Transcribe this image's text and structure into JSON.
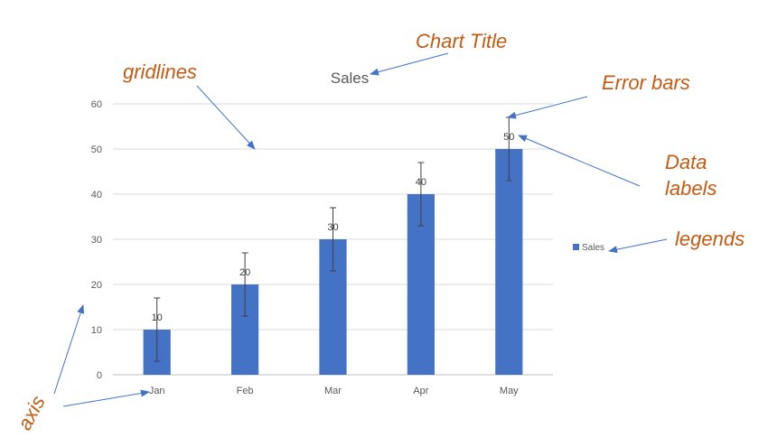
{
  "chart_data": {
    "type": "bar",
    "title": "Sales",
    "xlabel": "",
    "ylabel": "",
    "categories": [
      "Jan",
      "Feb",
      "Mar",
      "Apr",
      "May"
    ],
    "series": [
      {
        "name": "Sales",
        "values": [
          10,
          20,
          30,
          40,
          50
        ],
        "error": [
          7,
          7,
          7,
          7,
          7
        ]
      }
    ],
    "ylim": [
      0,
      60
    ],
    "yticks": [
      "0",
      "10",
      "20",
      "30",
      "40",
      "50",
      "60"
    ],
    "data_labels": [
      "10",
      "20",
      "30",
      "40",
      "50"
    ],
    "grid": true,
    "legend": "right",
    "colors": {
      "bar": "#4472C4",
      "grid": "#d9d9d9",
      "axis_text": "#595959",
      "annotation": "#C55A11",
      "arrow": "#4472C4"
    }
  },
  "annotations": {
    "chart_title": "Chart Title",
    "gridlines": "gridlines",
    "error_bars": "Error bars",
    "data_labels_line1": "Data",
    "data_labels_line2": "labels",
    "legends": "legends",
    "axis": "axis"
  }
}
